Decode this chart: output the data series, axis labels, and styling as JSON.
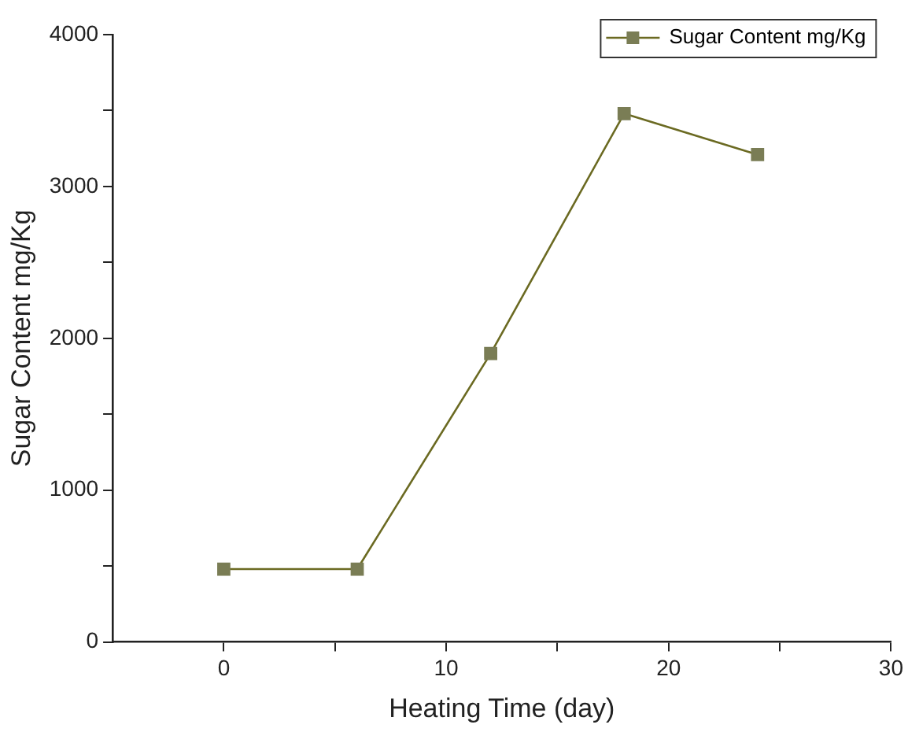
{
  "chart_data": {
    "type": "line",
    "xlabel": "Heating Time (day)",
    "ylabel": "Sugar Content mg/Kg",
    "x": [
      0,
      6,
      12,
      18,
      24
    ],
    "series": [
      {
        "name": "Sugar Content mg/Kg",
        "color": "#7a7d55",
        "values": [
          480,
          480,
          1900,
          3480,
          3210
        ]
      }
    ],
    "xlim": [
      -5,
      30
    ],
    "xticks": [
      0,
      {
        "value": 5,
        "label": null
      },
      10,
      {
        "value": 15,
        "label": null
      },
      20,
      {
        "value": 25,
        "label": null
      },
      30
    ],
    "ylim": [
      0,
      4000
    ],
    "yticks": [
      0,
      {
        "value": 500,
        "label": null
      },
      1000,
      {
        "value": 1500,
        "label": null
      },
      2000,
      {
        "value": 2500,
        "label": null
      },
      3000,
      {
        "value": 3500,
        "label": null
      },
      4000
    ],
    "marker": "square",
    "line_style": "solid",
    "legend": "top right",
    "grid": false
  }
}
